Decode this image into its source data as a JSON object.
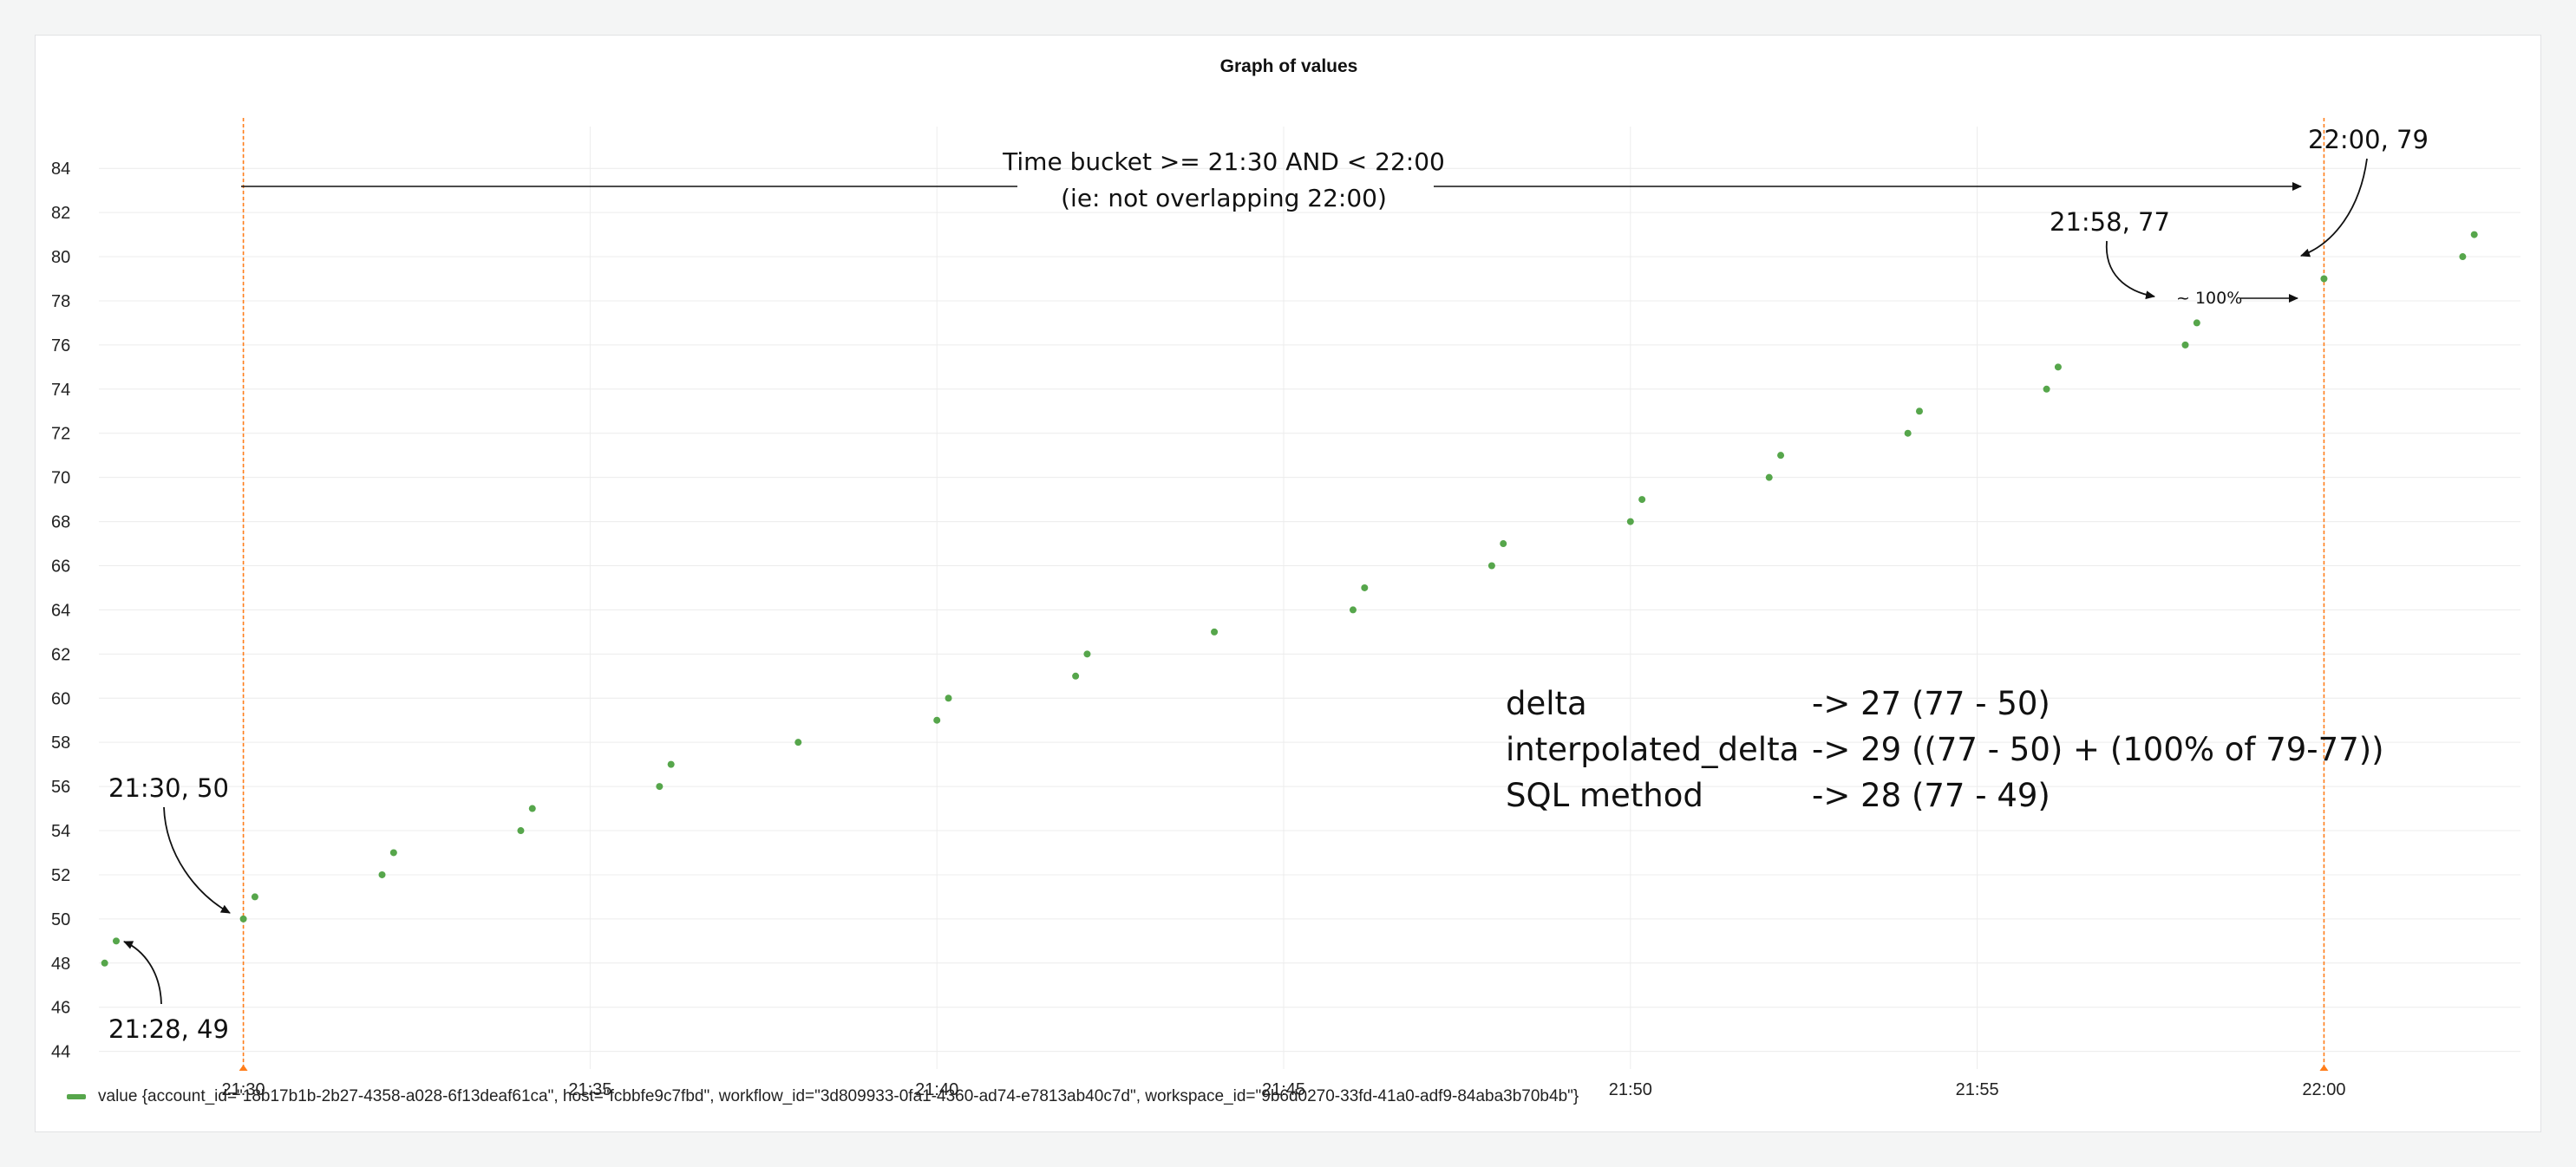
{
  "chart_data": {
    "type": "scatter",
    "title": "Graph of values",
    "xlabel": "",
    "ylabel": "",
    "x_tick_labels": [
      "21:30",
      "21:35",
      "21:40",
      "21:45",
      "21:50",
      "21:55",
      "22:00"
    ],
    "y_tick_labels": [
      "44",
      "46",
      "48",
      "50",
      "52",
      "54",
      "56",
      "58",
      "60",
      "62",
      "64",
      "66",
      "68",
      "70",
      "72",
      "74",
      "76",
      "78",
      "80",
      "82",
      "84"
    ],
    "xlim": [
      "21:27:55",
      "22:02:50"
    ],
    "ylim": [
      43.2,
      85.5
    ],
    "grid": true,
    "legend_position": "bottom-left",
    "colors": {
      "series": "#56a64b",
      "threshold": "#ff7d1a",
      "grid": "#ececec"
    },
    "series": [
      {
        "name": "value {account_id=\"18b17b1b-2b27-4358-a028-6f13deaf61ca\", host=\"fcbbfe9c7fbd\", workflow_id=\"3d809933-0fa1-4360-ad74-e7813ab40c7d\", workspace_id=\"9b6d0270-33fd-41a0-adf9-84aba3b70b4b\"}",
        "points": [
          {
            "x": "21:28:00",
            "y": 48
          },
          {
            "x": "21:28:10",
            "y": 49
          },
          {
            "x": "21:30:00",
            "y": 50
          },
          {
            "x": "21:30:10",
            "y": 51
          },
          {
            "x": "21:32:00",
            "y": 52
          },
          {
            "x": "21:32:10",
            "y": 53
          },
          {
            "x": "21:34:00",
            "y": 54
          },
          {
            "x": "21:34:10",
            "y": 55
          },
          {
            "x": "21:36:00",
            "y": 56
          },
          {
            "x": "21:36:10",
            "y": 57
          },
          {
            "x": "21:38:00",
            "y": 58
          },
          {
            "x": "21:40:00",
            "y": 59
          },
          {
            "x": "21:40:10",
            "y": 60
          },
          {
            "x": "21:42:00",
            "y": 61
          },
          {
            "x": "21:42:10",
            "y": 62
          },
          {
            "x": "21:44:00",
            "y": 63
          },
          {
            "x": "21:46:00",
            "y": 64
          },
          {
            "x": "21:46:10",
            "y": 65
          },
          {
            "x": "21:48:00",
            "y": 66
          },
          {
            "x": "21:48:10",
            "y": 67
          },
          {
            "x": "21:50:00",
            "y": 68
          },
          {
            "x": "21:50:10",
            "y": 69
          },
          {
            "x": "21:52:00",
            "y": 70
          },
          {
            "x": "21:52:10",
            "y": 71
          },
          {
            "x": "21:54:00",
            "y": 72
          },
          {
            "x": "21:54:10",
            "y": 73
          },
          {
            "x": "21:56:00",
            "y": 74
          },
          {
            "x": "21:56:10",
            "y": 75
          },
          {
            "x": "21:58:00",
            "y": 76
          },
          {
            "x": "21:58:10",
            "y": 77
          },
          {
            "x": "22:00:00",
            "y": 79
          },
          {
            "x": "22:02:00",
            "y": 80
          },
          {
            "x": "22:02:10",
            "y": 81
          }
        ]
      }
    ],
    "threshold_lines": [
      "21:30:00",
      "22:00:00"
    ],
    "annotations": {
      "bucket_line1": "Time bucket  >= 21:30 AND < 22:00",
      "bucket_line2": "(ie: not overlapping 22:00)",
      "label_2200": "22:00, 79",
      "label_2158": "21:58, 77",
      "label_2130": "21:30, 50",
      "label_2128": "21:28, 49",
      "pct_label": "~ 100%",
      "formula_names": [
        "delta",
        "interpolated_delta",
        "SQL method"
      ],
      "formula_values": [
        "-> 27 (77 - 50)",
        "-> 29 ((77 - 50) + (100% of 79-77))",
        "-> 28 (77 - 49)"
      ]
    }
  }
}
